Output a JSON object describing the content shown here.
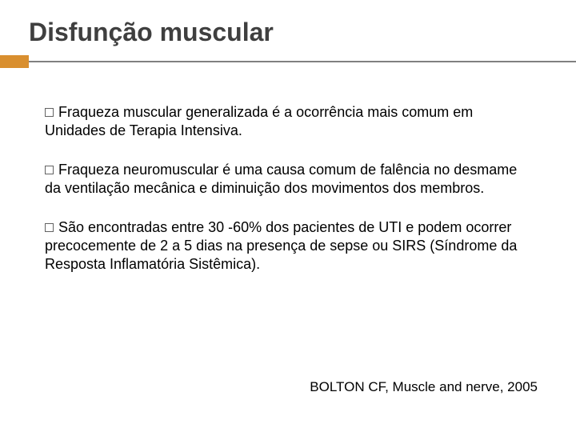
{
  "accent_color": "#d98f2f",
  "title": "Disfunção muscular",
  "bullets": [
    "Fraqueza muscular generalizada é a ocorrência mais comum em Unidades de Terapia Intensiva.",
    "Fraqueza neuromuscular é uma causa comum de falência no desmame da ventilação mecânica e diminuição dos movimentos dos membros.",
    "São encontradas entre 30 -60% dos pacientes de UTI e  podem ocorrer precocemente de 2 a 5 dias na presença de sepse ou SIRS (Síndrome da Resposta Inflamatória Sistêmica)."
  ],
  "citation": "BOLTON CF, Muscle and nerve, 2005"
}
